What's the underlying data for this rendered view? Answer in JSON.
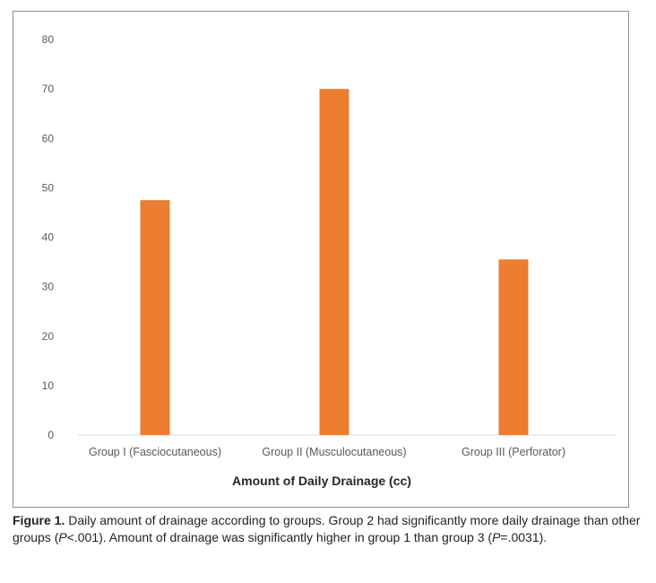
{
  "chart_data": {
    "type": "bar",
    "title": "Amount of Daily Drainage (cc)",
    "categories": [
      "Group I (Fasciocutaneous)",
      "Group II (Musculocutaneous)",
      "Group III (Perforator)"
    ],
    "values": [
      47.5,
      70,
      35.5
    ],
    "ylim": [
      0,
      80
    ],
    "yticks": [
      0,
      10,
      20,
      30,
      40,
      50,
      60,
      70,
      80
    ],
    "xlabel": "",
    "ylabel": "",
    "grid": false,
    "bar_color": "#ED7D31",
    "axis_color": "#D9D9D9"
  },
  "caption": {
    "label": "Figure 1.",
    "part1": " Daily amount of drainage according to groups. Group 2 had significantly more daily drainage than other groups (",
    "p1_italic": "P",
    "part2": "<.001). Amount of drainage was significantly higher in group 1 than group 3 (",
    "p2_italic": "P",
    "part3": "=.0031)."
  }
}
